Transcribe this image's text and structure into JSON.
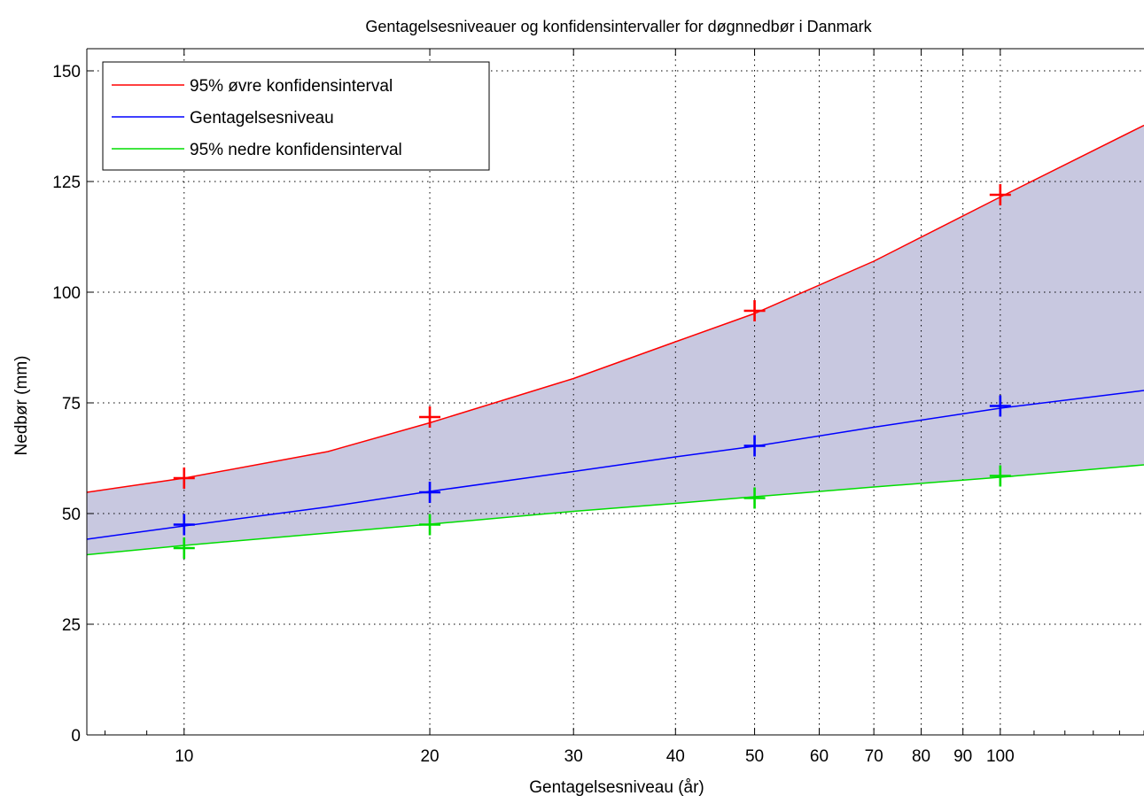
{
  "chart_data": {
    "type": "line",
    "title": "Gentagelsesniveauer og konfidensintervaller for døgnnedbør i Danmark",
    "xlabel": "Gentagelsesniveau (år)",
    "ylabel": "Nedbør (mm)",
    "x_scale": "log",
    "xlim": [
      7.6,
      150
    ],
    "ylim": [
      0,
      155
    ],
    "x_ticks": [
      10,
      20,
      30,
      40,
      50,
      60,
      70,
      80,
      90,
      100
    ],
    "x_ticklabels": [
      "10",
      "20",
      "30",
      "40",
      "50",
      "60",
      "70",
      "80",
      "90",
      "100"
    ],
    "y_ticks": [
      0,
      25,
      50,
      75,
      100,
      125,
      150
    ],
    "y_ticklabels": [
      "0",
      "25",
      "50",
      "75",
      "100",
      "125",
      "150"
    ],
    "grid": true,
    "legend_position": "top-left",
    "band_color": "#c8c8e0",
    "series": [
      {
        "name": "95% øvre konfidensinterval",
        "color": "#ff0000",
        "x": [
          7.6,
          10,
          15,
          20,
          30,
          40,
          50,
          70,
          100,
          150
        ],
        "y": [
          54.8,
          58.0,
          64.0,
          70.5,
          80.5,
          88.8,
          95.2,
          107.0,
          121.5,
          137.7
        ]
      },
      {
        "name": "Gentagelsesniveau",
        "color": "#0000ff",
        "x": [
          7.6,
          10,
          15,
          20,
          30,
          40,
          50,
          70,
          100,
          150
        ],
        "y": [
          44.2,
          47.2,
          51.5,
          55.0,
          59.5,
          62.8,
          65.2,
          69.5,
          73.8,
          77.8
        ]
      },
      {
        "name": "95% nedre konfidensinterval",
        "color": "#00dd00",
        "x": [
          7.6,
          10,
          15,
          20,
          30,
          40,
          50,
          70,
          100,
          150
        ],
        "y": [
          40.7,
          42.8,
          45.6,
          47.6,
          50.5,
          52.3,
          53.8,
          56.0,
          58.2,
          61.0
        ]
      }
    ],
    "markers": [
      {
        "series": "95% øvre konfidensinterval",
        "color": "#ff0000",
        "x": [
          10,
          20,
          50,
          100
        ],
        "y": [
          58.0,
          71.8,
          95.8,
          122.0
        ]
      },
      {
        "series": "Gentagelsesniveau",
        "color": "#0000ff",
        "x": [
          10,
          20,
          50,
          100
        ],
        "y": [
          47.5,
          54.8,
          65.3,
          74.3
        ]
      },
      {
        "series": "95% nedre konfidensinterval",
        "color": "#00dd00",
        "x": [
          10,
          20,
          50,
          100
        ],
        "y": [
          42.2,
          47.5,
          53.5,
          58.5
        ]
      }
    ]
  }
}
